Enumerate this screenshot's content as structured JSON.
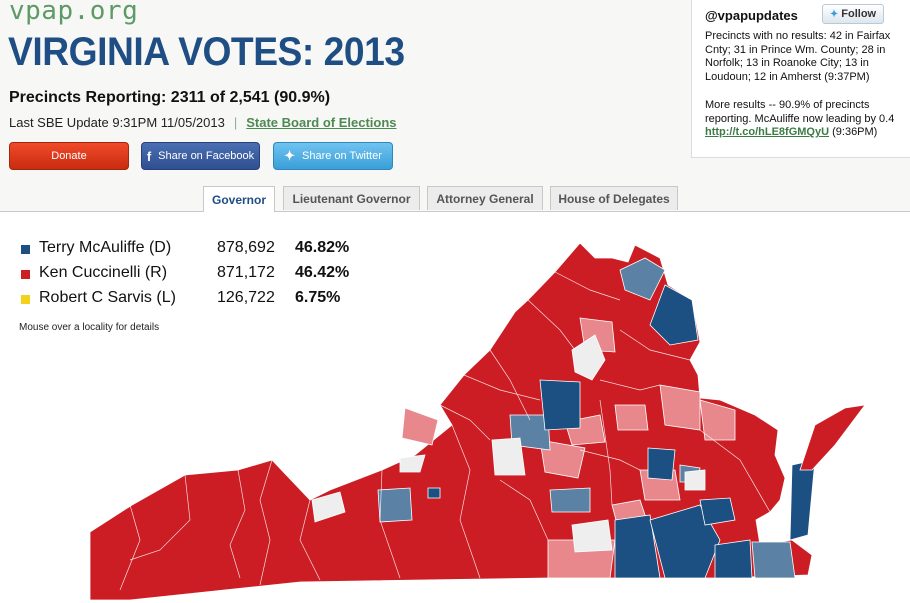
{
  "header": {
    "logo": "vpap.org",
    "title": "VIRGINIA VOTES: 2013",
    "precincts": "Precincts Reporting: 2311 of 2,541 (90.9%)",
    "last_update": "Last SBE Update 9:31PM 11/05/2013",
    "separator": "|",
    "sbe_link": "State Board of Elections"
  },
  "buttons": {
    "donate": "Donate",
    "facebook": "Share on Facebook",
    "twitter": "Share on Twitter"
  },
  "tabs": [
    {
      "label": "Governor",
      "active": true
    },
    {
      "label": "Lieutenant Governor",
      "active": false
    },
    {
      "label": "Attorney General",
      "active": false
    },
    {
      "label": "House of Delegates",
      "active": false
    }
  ],
  "twitter": {
    "handle": "@vpapupdates",
    "follow": "Follow",
    "tweets": [
      {
        "text": "Precincts with no results: 42 in Fairfax Cnty; 31 in Prince Wm. County; 28 in Norfolk; 13 in Roanoke City; 13 in Loudoun; 12 in Amherst (9:37PM)"
      },
      {
        "text": "More results -- 90.9% of precincts reporting. McAuliffe now leading by 0.4",
        "link": "http://t.co/hLE8fGMQyU",
        "time": "(9:36PM)"
      }
    ]
  },
  "results": [
    {
      "candidate": "Terry McAuliffe (D)",
      "votes": "878,692",
      "pct": "46.82%",
      "color": "#1c4f82"
    },
    {
      "candidate": "Ken Cuccinelli (R)",
      "votes": "871,172",
      "pct": "46.42%",
      "color": "#cc1d24"
    },
    {
      "candidate": "Robert C Sarvis (L)",
      "votes": "126,722",
      "pct": "6.75%",
      "color": "#f3d21b"
    }
  ],
  "map_hint": "Mouse over a locality for details",
  "map_colors": {
    "dem_strong": "#1c4f82",
    "dem_lean": "#5b82a4",
    "rep_strong": "#cc1d24",
    "rep_lean": "#e8888d",
    "no_results": "#eeeeee"
  }
}
